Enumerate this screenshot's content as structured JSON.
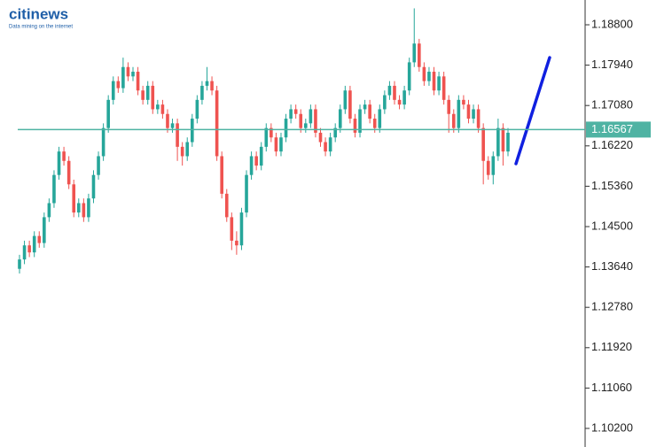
{
  "chart_data": {
    "type": "candlestick",
    "logo": "citinews",
    "logo_tagline": "Data mining on the internet",
    "up_color": "#26a69a",
    "down_color": "#ef5350",
    "open": [
      1.136,
      1.138,
      1.141,
      1.1395,
      1.143,
      1.1415,
      1.147,
      1.15,
      1.156,
      1.161,
      1.159,
      1.154,
      1.148,
      1.15,
      1.147,
      1.151,
      1.156,
      1.16,
      1.166,
      1.172,
      1.176,
      1.1745,
      1.179,
      1.177,
      1.178,
      1.174,
      1.172,
      1.175,
      1.17,
      1.171,
      1.169,
      1.166,
      1.167,
      1.162,
      1.16,
      1.163,
      1.168,
      1.172,
      1.175,
      1.176,
      1.174,
      1.16,
      1.152,
      1.147,
      1.142,
      1.141,
      1.148,
      1.156,
      1.16,
      1.158,
      1.162,
      1.166,
      1.164,
      1.161,
      1.164,
      1.168,
      1.17,
      1.169,
      1.166,
      1.167,
      1.17,
      1.165,
      1.163,
      1.161,
      1.164,
      1.166,
      1.17,
      1.174,
      1.168,
      1.165,
      1.17,
      1.171,
      1.168,
      1.166,
      1.17,
      1.173,
      1.175,
      1.172,
      1.171,
      1.174,
      1.18,
      1.184,
      1.179,
      1.176,
      1.178,
      1.174,
      1.177,
      1.172,
      1.169,
      1.166,
      1.172,
      1.171,
      1.168,
      1.17,
      1.166,
      1.159,
      1.156,
      1.16,
      1.166,
      1.161
    ],
    "high": [
      1.139,
      1.142,
      1.142,
      1.144,
      1.144,
      1.148,
      1.151,
      1.157,
      1.162,
      1.162,
      1.16,
      1.155,
      1.151,
      1.151,
      1.152,
      1.157,
      1.161,
      1.167,
      1.173,
      1.177,
      1.177,
      1.181,
      1.18,
      1.179,
      1.179,
      1.175,
      1.176,
      1.176,
      1.172,
      1.172,
      1.17,
      1.168,
      1.168,
      1.163,
      1.164,
      1.169,
      1.173,
      1.176,
      1.179,
      1.177,
      1.175,
      1.161,
      1.153,
      1.148,
      1.144,
      1.149,
      1.157,
      1.161,
      1.161,
      1.163,
      1.167,
      1.167,
      1.165,
      1.165,
      1.169,
      1.171,
      1.171,
      1.17,
      1.168,
      1.171,
      1.171,
      1.166,
      1.164,
      1.165,
      1.167,
      1.171,
      1.175,
      1.175,
      1.169,
      1.171,
      1.172,
      1.172,
      1.169,
      1.171,
      1.174,
      1.176,
      1.176,
      1.173,
      1.175,
      1.181,
      1.1915,
      1.185,
      1.18,
      1.179,
      1.179,
      1.178,
      1.178,
      1.173,
      1.17,
      1.173,
      1.173,
      1.172,
      1.171,
      1.171,
      1.167,
      1.16,
      1.161,
      1.168,
      1.167,
      1.166
    ],
    "low": [
      1.135,
      1.137,
      1.1385,
      1.1385,
      1.1405,
      1.1405,
      1.146,
      1.149,
      1.155,
      1.158,
      1.153,
      1.147,
      1.147,
      1.146,
      1.146,
      1.15,
      1.155,
      1.159,
      1.165,
      1.171,
      1.1735,
      1.1735,
      1.176,
      1.176,
      1.173,
      1.171,
      1.171,
      1.169,
      1.169,
      1.168,
      1.165,
      1.165,
      1.159,
      1.158,
      1.159,
      1.162,
      1.167,
      1.171,
      1.174,
      1.173,
      1.159,
      1.151,
      1.146,
      1.14,
      1.139,
      1.14,
      1.147,
      1.155,
      1.157,
      1.157,
      1.161,
      1.163,
      1.16,
      1.16,
      1.163,
      1.167,
      1.168,
      1.165,
      1.165,
      1.166,
      1.164,
      1.162,
      1.16,
      1.16,
      1.163,
      1.165,
      1.169,
      1.167,
      1.164,
      1.164,
      1.169,
      1.167,
      1.165,
      1.165,
      1.169,
      1.172,
      1.171,
      1.17,
      1.17,
      1.173,
      1.179,
      1.178,
      1.175,
      1.175,
      1.173,
      1.173,
      1.171,
      1.165,
      1.165,
      1.165,
      1.17,
      1.167,
      1.167,
      1.165,
      1.154,
      1.155,
      1.154,
      1.159,
      1.158,
      1.16
    ],
    "close": [
      1.138,
      1.141,
      1.1395,
      1.143,
      1.1415,
      1.147,
      1.15,
      1.156,
      1.161,
      1.159,
      1.154,
      1.148,
      1.15,
      1.147,
      1.151,
      1.156,
      1.16,
      1.166,
      1.172,
      1.176,
      1.1745,
      1.179,
      1.177,
      1.178,
      1.174,
      1.172,
      1.175,
      1.17,
      1.171,
      1.169,
      1.166,
      1.167,
      1.162,
      1.16,
      1.163,
      1.168,
      1.172,
      1.175,
      1.176,
      1.174,
      1.16,
      1.152,
      1.147,
      1.142,
      1.141,
      1.148,
      1.156,
      1.16,
      1.158,
      1.162,
      1.166,
      1.164,
      1.161,
      1.164,
      1.168,
      1.17,
      1.169,
      1.166,
      1.167,
      1.17,
      1.165,
      1.163,
      1.161,
      1.164,
      1.166,
      1.17,
      1.174,
      1.168,
      1.165,
      1.17,
      1.171,
      1.168,
      1.166,
      1.17,
      1.173,
      1.175,
      1.172,
      1.171,
      1.174,
      1.18,
      1.184,
      1.179,
      1.176,
      1.178,
      1.174,
      1.177,
      1.172,
      1.169,
      1.166,
      1.172,
      1.171,
      1.168,
      1.17,
      1.166,
      1.159,
      1.156,
      1.16,
      1.166,
      1.161,
      1.165
    ],
    "current_price": 1.16567,
    "price_line_color": "#4fb3a3",
    "ylim": [
      1.09804,
      1.19328
    ],
    "yticks": [
      {
        "value": 1.188,
        "label": "1.18800"
      },
      {
        "value": 1.1794,
        "label": "1.17940"
      },
      {
        "value": 1.1708,
        "label": "1.17080"
      },
      {
        "value": 1.1622,
        "label": "1.16220"
      },
      {
        "value": 1.1536,
        "label": "1.15360"
      },
      {
        "value": 1.145,
        "label": "1.14500"
      },
      {
        "value": 1.1364,
        "label": "1.13640"
      },
      {
        "value": 1.1278,
        "label": "1.12780"
      },
      {
        "value": 1.1192,
        "label": "1.11920"
      },
      {
        "value": 1.1106,
        "label": "1.11060"
      },
      {
        "value": 1.102,
        "label": "1.10200"
      }
    ]
  }
}
